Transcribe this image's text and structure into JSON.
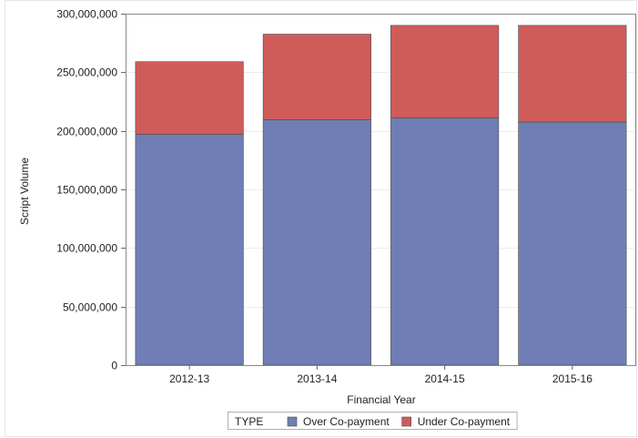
{
  "chart_data": {
    "type": "bar",
    "stacked": true,
    "categories": [
      "2012-13",
      "2013-14",
      "2014-15",
      "2015-16"
    ],
    "series": [
      {
        "name": "Over Co-payment",
        "values": [
          197000000,
          209500000,
          211000000,
          207500000
        ],
        "color": "#6F7EB5"
      },
      {
        "name": "Under Co-payment",
        "values": [
          62000000,
          73000000,
          79000000,
          82500000
        ],
        "color": "#D05B5B"
      }
    ],
    "xlabel": "Financial Year",
    "ylabel": "Script Volume",
    "ylim": [
      0,
      300000000
    ],
    "yticks": [
      0,
      50000000,
      100000000,
      150000000,
      200000000,
      250000000,
      300000000
    ],
    "ytick_labels": [
      "0",
      "50,000,000",
      "100,000,000",
      "150,000,000",
      "200,000,000",
      "250,000,000",
      "300,000,000"
    ],
    "grid": true,
    "legend": {
      "title": "TYPE",
      "position": "bottom"
    }
  }
}
